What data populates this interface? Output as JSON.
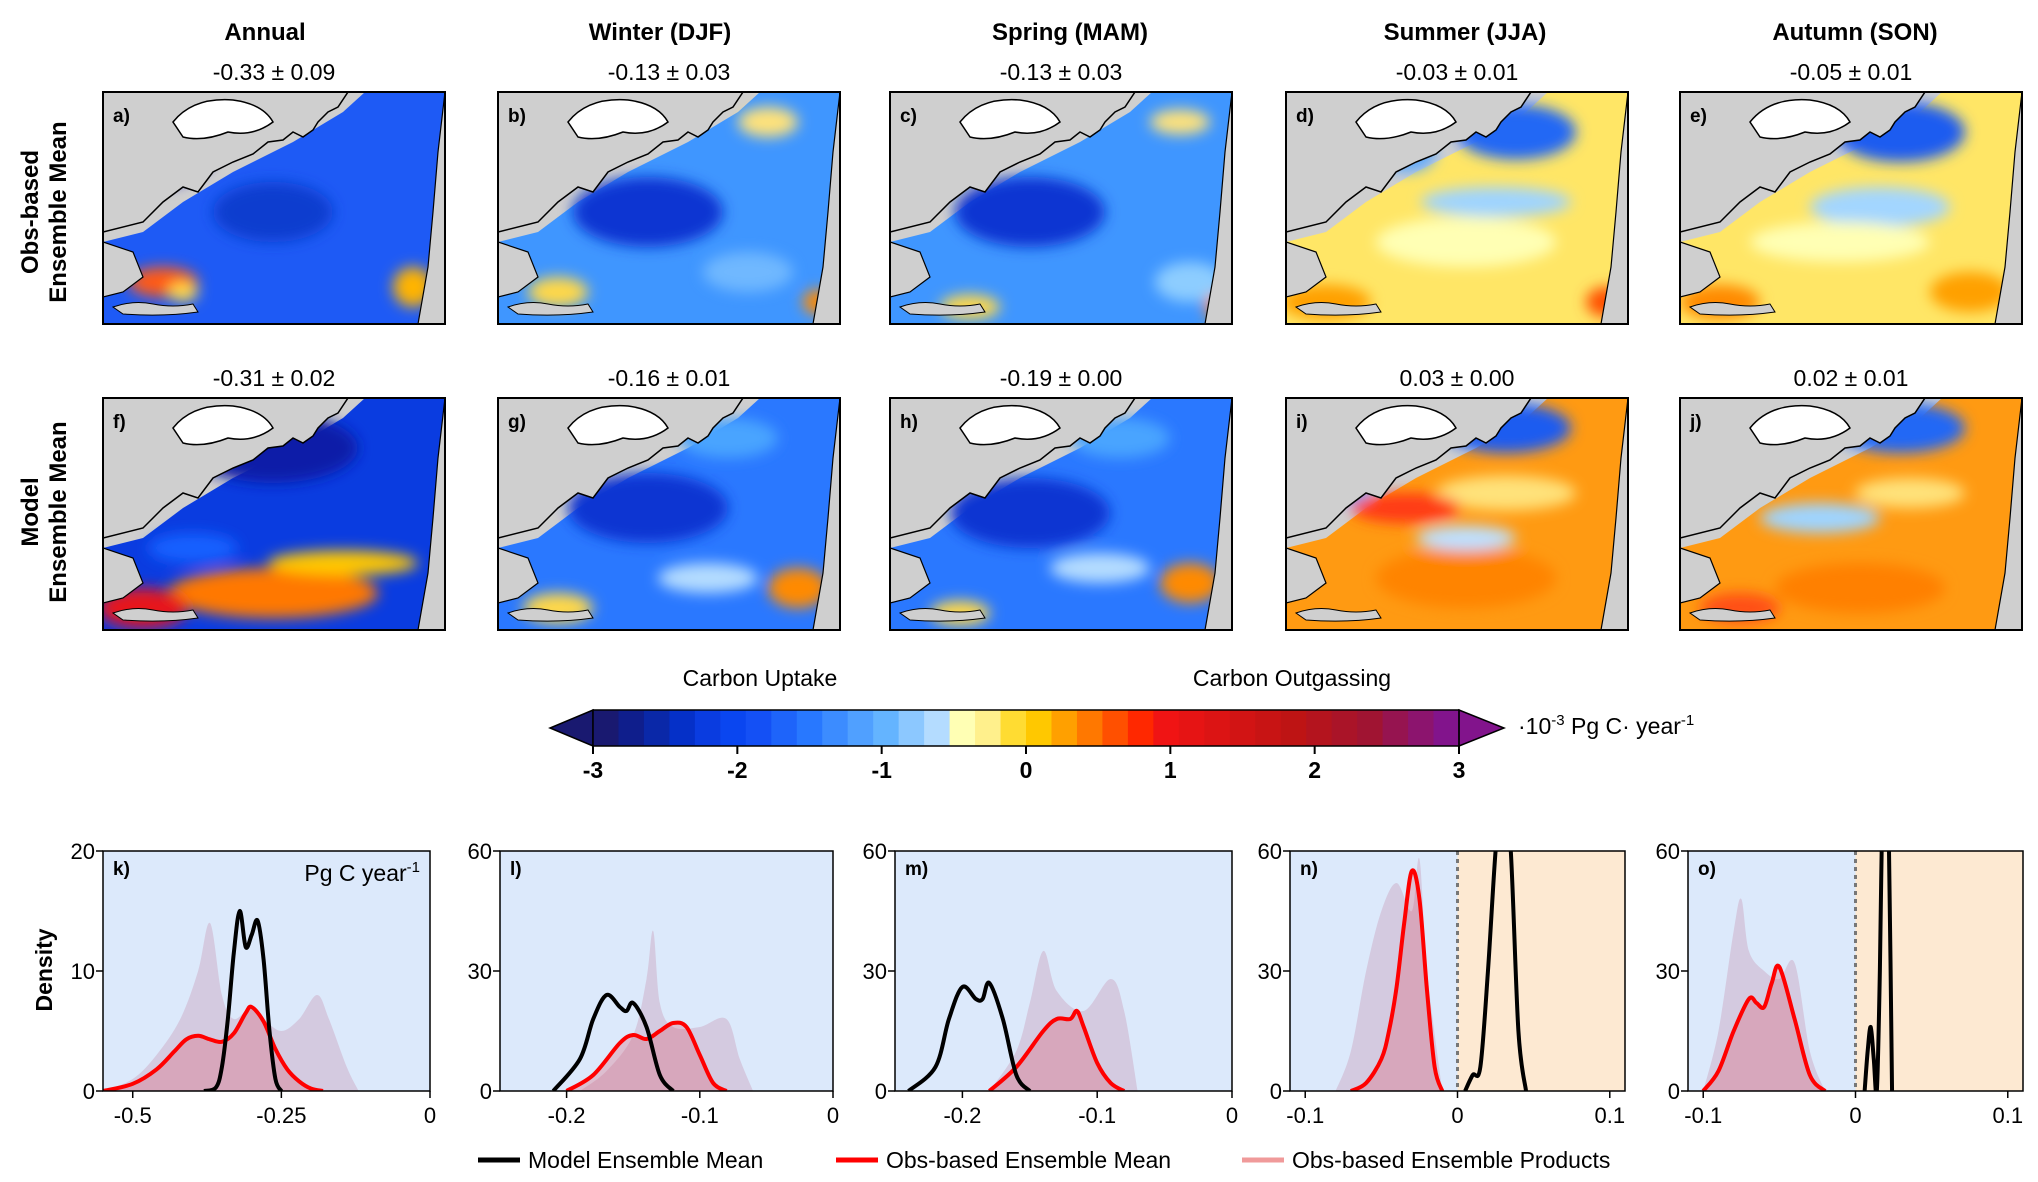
{
  "columns": [
    "Annual",
    "Winter (DJF)",
    "Spring (MAM)",
    "Summer (JJA)",
    "Autumn (SON)"
  ],
  "rows": [
    {
      "label_line1": "Obs-based",
      "label_line2": "Ensemble Mean"
    },
    {
      "label_line1": "Model",
      "label_line2": "Ensemble Mean"
    }
  ],
  "panels": [
    {
      "id": "a)",
      "stat": "-0.33 ± 0.09",
      "row": 0,
      "col": 0
    },
    {
      "id": "b)",
      "stat": "-0.13 ± 0.03",
      "row": 0,
      "col": 1
    },
    {
      "id": "c)",
      "stat": "-0.13 ± 0.03",
      "row": 0,
      "col": 2
    },
    {
      "id": "d)",
      "stat": "-0.03 ± 0.01",
      "row": 0,
      "col": 3
    },
    {
      "id": "e)",
      "stat": "-0.05 ± 0.01",
      "row": 0,
      "col": 4
    },
    {
      "id": "f)",
      "stat": "-0.31 ± 0.02",
      "row": 1,
      "col": 0
    },
    {
      "id": "g)",
      "stat": "-0.16 ± 0.01",
      "row": 1,
      "col": 1
    },
    {
      "id": "h)",
      "stat": "-0.19 ± 0.00",
      "row": 1,
      "col": 2
    },
    {
      "id": "i)",
      "stat": "0.03 ± 0.00",
      "row": 1,
      "col": 3
    },
    {
      "id": "j)",
      "stat": "0.02 ± 0.01",
      "row": 1,
      "col": 4
    }
  ],
  "colorbar": {
    "label_left": "Carbon Uptake",
    "label_right": "Carbon Outgassing",
    "units_prefix": "·10",
    "units_exp": "-3",
    "units_mid": " Pg C· year",
    "units_exp2": "-1",
    "ticks": [
      "-3",
      "-2",
      "-1",
      "0",
      "1",
      "2",
      "3"
    ],
    "colors": [
      "#191970",
      "#0f1e8c",
      "#0a28a8",
      "#0530c8",
      "#0a3ce0",
      "#0a46f0",
      "#1450f5",
      "#1e64fa",
      "#2878ff",
      "#3c8cff",
      "#50a0ff",
      "#64b4ff",
      "#8cc8ff",
      "#b4dcff",
      "#ffffb4",
      "#fff08c",
      "#ffdc32",
      "#ffc800",
      "#ffa000",
      "#ff7800",
      "#ff5000",
      "#ff2800",
      "#f01414",
      "#e61414",
      "#dc1414",
      "#d21414",
      "#c81414",
      "#be1414",
      "#b4141e",
      "#aa1428",
      "#a01432",
      "#961450",
      "#8c146e",
      "#82148c"
    ],
    "arrow_left": "#191970",
    "arrow_right": "#82148c"
  },
  "density_panels": [
    {
      "id": "k)",
      "unit_note": "Pg C year",
      "unit_exp": "-1",
      "xlim": [
        -0.55,
        0
      ],
      "ylim": [
        0,
        20
      ],
      "xticks": [
        -0.5,
        -0.25,
        0
      ],
      "xticklabels": [
        "-0.5",
        "-0.25",
        "0"
      ],
      "yticks": [
        0,
        10,
        20
      ],
      "yticklabels": [
        "0",
        "10",
        "20"
      ],
      "divider": false
    },
    {
      "id": "l)",
      "xlim": [
        -0.25,
        0
      ],
      "ylim": [
        0,
        60
      ],
      "xticks": [
        -0.2,
        -0.1,
        0
      ],
      "xticklabels": [
        "-0.2",
        "-0.1",
        "0"
      ],
      "yticks": [
        0,
        30,
        60
      ],
      "yticklabels": [
        "0",
        "30",
        "60"
      ],
      "divider": false
    },
    {
      "id": "m)",
      "xlim": [
        -0.25,
        0
      ],
      "ylim": [
        0,
        60
      ],
      "xticks": [
        -0.2,
        -0.1,
        0
      ],
      "xticklabels": [
        "-0.2",
        "-0.1",
        "0"
      ],
      "yticks": [
        0,
        30,
        60
      ],
      "yticklabels": [
        "0",
        "30",
        "60"
      ],
      "divider": false
    },
    {
      "id": "n)",
      "xlim": [
        -0.11,
        0.11
      ],
      "ylim": [
        0,
        60
      ],
      "xticks": [
        -0.1,
        0,
        0.1
      ],
      "xticklabels": [
        "-0.1",
        "0",
        "0.1"
      ],
      "yticks": [
        0,
        30,
        60
      ],
      "yticklabels": [
        "0",
        "30",
        "60"
      ],
      "divider": true
    },
    {
      "id": "o)",
      "xlim": [
        -0.11,
        0.11
      ],
      "ylim": [
        0,
        60
      ],
      "xticks": [
        -0.1,
        0,
        0.1
      ],
      "xticklabels": [
        "-0.1",
        "0",
        "0.1"
      ],
      "yticks": [
        0,
        30,
        60
      ],
      "yticklabels": [
        "0",
        "30",
        "60"
      ],
      "divider": true
    }
  ],
  "density_ylabel": "Density",
  "legend": [
    {
      "label": "Model Ensemble Mean",
      "color": "#000000"
    },
    {
      "label": "Obs-based Ensemble Mean",
      "color": "#ff0000"
    },
    {
      "label": "Obs-based Ensemble Products",
      "color": "#f09a9a"
    }
  ],
  "chart_data": [
    {
      "type": "area",
      "panel": "k)",
      "xlabel": "",
      "ylabel": "Density",
      "series": [
        {
          "name": "Model Ensemble Mean",
          "x": [
            -0.38,
            -0.36,
            -0.35,
            -0.34,
            -0.33,
            -0.32,
            -0.31,
            -0.3,
            -0.29,
            -0.28,
            -0.27,
            -0.26,
            -0.25
          ],
          "y": [
            0,
            0.3,
            2,
            6,
            11.5,
            15,
            12,
            13,
            14.2,
            11,
            5,
            1,
            0
          ]
        },
        {
          "name": "Obs-based Ensemble Mean",
          "x": [
            -0.55,
            -0.5,
            -0.46,
            -0.43,
            -0.41,
            -0.39,
            -0.37,
            -0.35,
            -0.33,
            -0.31,
            -0.3,
            -0.28,
            -0.26,
            -0.24,
            -0.22,
            -0.2,
            -0.18
          ],
          "y": [
            0,
            0.6,
            1.8,
            3.3,
            4.3,
            4.6,
            4.3,
            4.1,
            4.8,
            6.5,
            7.0,
            5.8,
            3.5,
            1.8,
            0.8,
            0.2,
            0
          ]
        },
        {
          "name": "Obs-based Ensemble Products",
          "x": [
            -0.55,
            -0.5,
            -0.46,
            -0.42,
            -0.39,
            -0.37,
            -0.35,
            -0.33,
            -0.3,
            -0.28,
            -0.25,
            -0.22,
            -0.19,
            -0.17,
            -0.14,
            -0.12
          ],
          "y": [
            0,
            1,
            3,
            6,
            10,
            14,
            8,
            6,
            7,
            6,
            5,
            6,
            8,
            6,
            2,
            0
          ]
        }
      ]
    },
    {
      "type": "area",
      "panel": "l)",
      "series": [
        {
          "name": "Model Ensemble Mean",
          "x": [
            -0.21,
            -0.19,
            -0.18,
            -0.17,
            -0.16,
            -0.155,
            -0.15,
            -0.14,
            -0.13,
            -0.12
          ],
          "y": [
            0,
            8,
            18,
            24,
            21,
            20,
            22,
            16,
            4,
            0
          ]
        },
        {
          "name": "Obs-based Ensemble Mean",
          "x": [
            -0.2,
            -0.18,
            -0.16,
            -0.15,
            -0.14,
            -0.13,
            -0.12,
            -0.11,
            -0.1,
            -0.09,
            -0.08
          ],
          "y": [
            0,
            4,
            12,
            14,
            13,
            15,
            17,
            16,
            9,
            2,
            0
          ]
        },
        {
          "name": "Obs-based Ensemble Products",
          "x": [
            -0.19,
            -0.17,
            -0.15,
            -0.14,
            -0.135,
            -0.13,
            -0.12,
            -0.1,
            -0.08,
            -0.07,
            -0.06
          ],
          "y": [
            0,
            5,
            14,
            28,
            40,
            22,
            16,
            16,
            18,
            8,
            0
          ]
        }
      ]
    },
    {
      "type": "area",
      "panel": "m)",
      "series": [
        {
          "name": "Model Ensemble Mean",
          "x": [
            -0.24,
            -0.22,
            -0.21,
            -0.2,
            -0.19,
            -0.185,
            -0.18,
            -0.17,
            -0.16,
            -0.15
          ],
          "y": [
            0,
            6,
            18,
            26,
            23,
            23,
            27,
            18,
            4,
            0
          ]
        },
        {
          "name": "Obs-based Ensemble Mean",
          "x": [
            -0.18,
            -0.16,
            -0.14,
            -0.13,
            -0.12,
            -0.115,
            -0.11,
            -0.1,
            -0.09,
            -0.08
          ],
          "y": [
            0,
            6,
            15,
            18,
            18,
            20,
            16,
            7,
            2,
            0
          ]
        },
        {
          "name": "Obs-based Ensemble Products",
          "x": [
            -0.18,
            -0.16,
            -0.15,
            -0.14,
            -0.13,
            -0.11,
            -0.09,
            -0.08,
            -0.07
          ],
          "y": [
            0,
            10,
            22,
            35,
            25,
            20,
            28,
            20,
            0
          ]
        }
      ]
    },
    {
      "type": "area",
      "panel": "n)",
      "series": [
        {
          "name": "Model Ensemble Mean",
          "x": [
            0.005,
            0.01,
            0.015,
            0.02,
            0.025,
            0.03,
            0.035,
            0.04,
            0.045
          ],
          "y": [
            0,
            4,
            6,
            30,
            60,
            80,
            60,
            15,
            0
          ]
        },
        {
          "name": "Obs-based Ensemble Mean",
          "x": [
            -0.07,
            -0.06,
            -0.05,
            -0.045,
            -0.04,
            -0.035,
            -0.03,
            -0.025,
            -0.02,
            -0.015,
            -0.01
          ],
          "y": [
            0,
            2,
            8,
            15,
            26,
            42,
            55,
            48,
            25,
            6,
            0
          ]
        },
        {
          "name": "Obs-based Ensemble Products",
          "x": [
            -0.08,
            -0.07,
            -0.06,
            -0.05,
            -0.04,
            -0.03,
            -0.025,
            -0.02,
            -0.01
          ],
          "y": [
            0,
            10,
            30,
            45,
            52,
            45,
            58,
            30,
            0
          ]
        }
      ]
    },
    {
      "type": "area",
      "panel": "o)",
      "series": [
        {
          "name": "Model Ensemble Mean",
          "x": [
            0.006,
            0.008,
            0.01,
            0.012,
            0.014,
            0.016,
            0.018,
            0.02,
            0.022,
            0.024
          ],
          "y": [
            0,
            10,
            16,
            8,
            0,
            30,
            80,
            90,
            60,
            0
          ]
        },
        {
          "name": "Obs-based Ensemble Mean",
          "x": [
            -0.1,
            -0.09,
            -0.08,
            -0.07,
            -0.065,
            -0.06,
            -0.055,
            -0.05,
            -0.04,
            -0.03,
            -0.02
          ],
          "y": [
            0,
            5,
            15,
            23,
            22,
            21,
            27,
            31,
            18,
            4,
            0
          ]
        },
        {
          "name": "Obs-based Ensemble Products",
          "x": [
            -0.1,
            -0.09,
            -0.08,
            -0.075,
            -0.07,
            -0.06,
            -0.05,
            -0.04,
            -0.03,
            -0.02
          ],
          "y": [
            0,
            15,
            40,
            48,
            35,
            30,
            28,
            32,
            10,
            0
          ]
        }
      ]
    }
  ]
}
